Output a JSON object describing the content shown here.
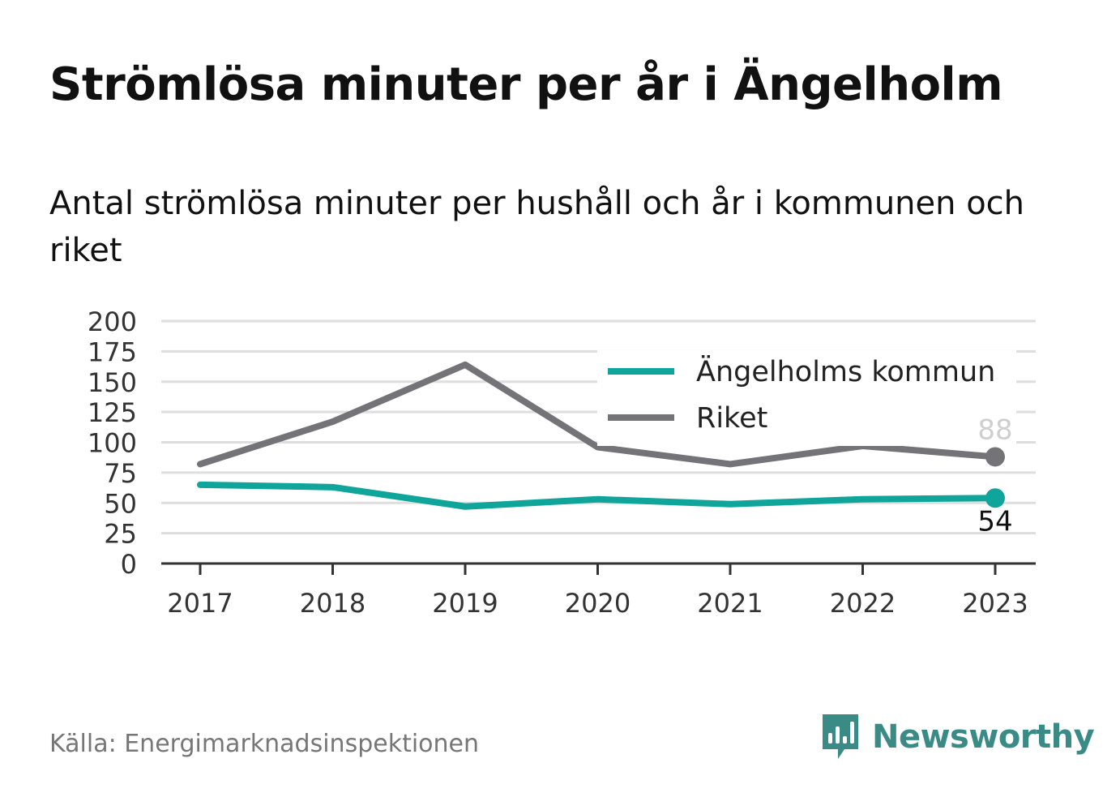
{
  "title": "Strömlösa minuter per år i Ängelholm",
  "subtitle": "Antal strömlösa minuter per hushåll och år i kommunen och riket",
  "source": "Källa: Energimarknadsinspektionen",
  "brand": {
    "name": "Newsworthy",
    "icon": "newsworthy-logo-icon",
    "color": "#3a8a86"
  },
  "chart_data": {
    "type": "line",
    "x": [
      "2017",
      "2018",
      "2019",
      "2020",
      "2021",
      "2022",
      "2023"
    ],
    "ylim": [
      0,
      200
    ],
    "yticks": [
      "0",
      "25",
      "50",
      "75",
      "100",
      "125",
      "150",
      "175",
      "200"
    ],
    "grid": true,
    "legend_position": "top-right",
    "xlabel": "",
    "ylabel": "",
    "series": [
      {
        "name": "Ängelholms kommun",
        "color": "#0fa59b",
        "values": [
          65,
          63,
          47,
          53,
          49,
          53,
          54
        ],
        "end_label": "54"
      },
      {
        "name": "Riket",
        "color": "#737378",
        "values": [
          82,
          117,
          164,
          96,
          82,
          97,
          88
        ],
        "end_label": "88"
      }
    ]
  }
}
